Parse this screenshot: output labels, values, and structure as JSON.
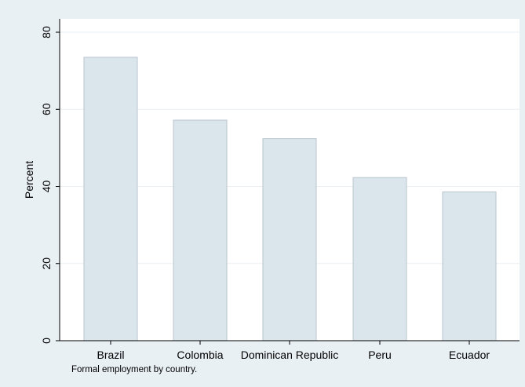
{
  "chart_data": {
    "type": "bar",
    "categories": [
      "Brazil",
      "Colombia",
      "Dominican Republic",
      "Peru",
      "Ecuador"
    ],
    "values": [
      73.5,
      57.2,
      52.4,
      42.3,
      38.6
    ],
    "ylabel": "Percent",
    "xlabel": "",
    "yticks": [
      0,
      20,
      40,
      60,
      80
    ],
    "ylim": [
      0,
      83
    ],
    "grid": true,
    "caption": "Formal employment by country.",
    "colors": {
      "background": "#e9f0f4",
      "plot_background": "#ffffff",
      "bar_fill": "#dbe5ec",
      "bar_stroke": "#b9c6ce",
      "grid": "#eaeff3",
      "axis": "#000000"
    }
  }
}
